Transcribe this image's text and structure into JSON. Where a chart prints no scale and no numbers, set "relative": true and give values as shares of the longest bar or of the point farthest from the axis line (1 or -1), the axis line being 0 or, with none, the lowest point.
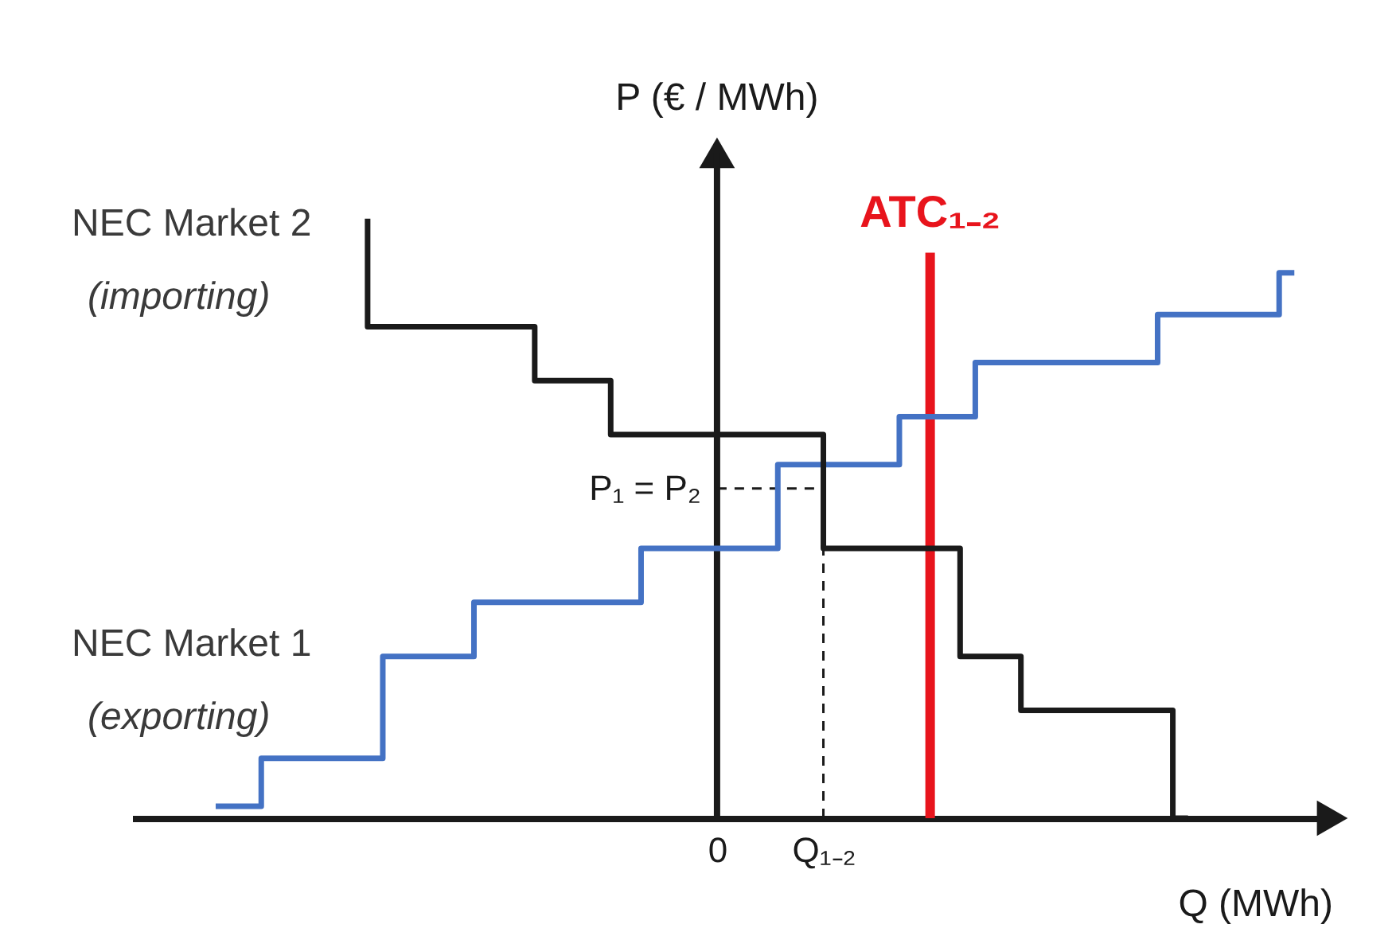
{
  "chart_data": {
    "type": "step",
    "relative": true,
    "xlabel": "Q (MWh)",
    "ylabel": "P (€ / MWh)",
    "categories": [
      null,
      null,
      null,
      null,
      null,
      null,
      null,
      null,
      null,
      null,
      null,
      null,
      null,
      null,
      null,
      null,
      null,
      null,
      null,
      null,
      null,
      null,
      null,
      null,
      null,
      null,
      null,
      null,
      null,
      null,
      null,
      null,
      null,
      null,
      null,
      null,
      null,
      null,
      "0",
      null,
      null,
      null,
      null,
      null,
      null,
      "Q₁₋₂",
      null,
      null,
      null,
      null,
      null,
      null,
      null,
      null,
      null,
      null,
      null,
      null,
      null,
      null,
      null,
      null,
      null,
      null,
      null,
      null,
      null,
      null,
      null,
      null,
      null,
      null,
      null,
      null,
      null,
      null,
      null,
      null
    ],
    "series": [
      {
        "name": "NEC Market 1 (exporting)",
        "color": "#4472c4",
        "values": [
          null,
          null,
          null,
          null,
          null,
          0.02,
          0.02,
          0.02,
          0.02,
          0.1,
          0.1,
          0.1,
          0.1,
          0.1,
          0.1,
          0.1,
          0.1,
          0.27,
          0.27,
          0.27,
          0.27,
          0.27,
          0.27,
          0.36,
          0.36,
          0.36,
          0.36,
          0.36,
          0.36,
          0.36,
          0.36,
          0.36,
          0.36,
          0.36,
          0.45,
          0.45,
          0.45,
          0.45,
          0.45,
          0.45,
          0.45,
          0.45,
          0.45,
          0.59,
          0.59,
          0.59,
          0.59,
          0.59,
          0.59,
          0.59,
          0.59,
          0.67,
          0.67,
          0.67,
          0.67,
          0.67,
          0.76,
          0.76,
          0.76,
          0.76,
          0.76,
          0.76,
          0.76,
          0.76,
          0.76,
          0.76,
          0.76,
          0.76,
          0.84,
          0.84,
          0.84,
          0.84,
          0.84,
          0.84,
          0.84,
          0.84,
          0.91,
          null
        ]
      },
      {
        "name": "NEC Market 2 (importing)",
        "color": "#1a1a1a",
        "values": [
          null,
          null,
          null,
          null,
          null,
          null,
          null,
          null,
          null,
          null,
          null,
          null,
          null,
          null,
          null,
          1.0,
          0.82,
          0.82,
          0.82,
          0.82,
          0.82,
          0.82,
          0.82,
          0.82,
          0.82,
          0.82,
          0.82,
          0.73,
          0.73,
          0.73,
          0.73,
          0.73,
          0.64,
          0.64,
          0.64,
          0.64,
          0.64,
          0.64,
          0.64,
          0.64,
          0.64,
          0.64,
          0.64,
          0.64,
          0.64,
          0.64,
          0.45,
          0.45,
          0.45,
          0.45,
          0.45,
          0.45,
          0.45,
          0.45,
          0.45,
          0.27,
          0.27,
          0.27,
          0.27,
          0.18,
          0.18,
          0.18,
          0.18,
          0.18,
          0.18,
          0.18,
          0.18,
          0.18,
          0.18,
          0.0,
          null,
          null,
          null,
          null,
          null,
          null,
          null,
          null
        ]
      }
    ],
    "ref_lines": [
      {
        "axis": "x",
        "value": "0",
        "color": "#1a1a1a",
        "line_style": "solid"
      },
      {
        "axis": "y",
        "value": 0.55,
        "label": "P₁ = P₂",
        "color": "#1a1a1a",
        "line_style": "dashed"
      },
      {
        "axis": "x",
        "value": "Q₁₋₂",
        "color": "#1a1a1a",
        "line_style": "dashed"
      }
    ],
    "annotations": [
      "ATC₁₋₂"
    ],
    "grid": false,
    "legend": false,
    "marker": "none",
    "line_style": "solid"
  }
}
